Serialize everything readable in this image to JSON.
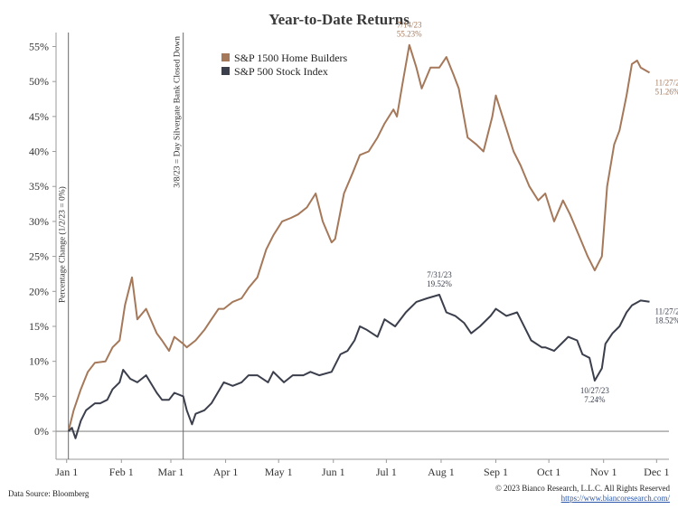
{
  "chart_data": {
    "type": "line",
    "title": "Year-to-Date Returns",
    "xlabel": "",
    "ylabel": "Percentage Change (1/2/23 = 0%)",
    "x_axis": {
      "type": "date",
      "min": "2022-12-26",
      "max": "2023-12-08",
      "ticks": [
        {
          "date": "2023-01-01",
          "label": "Jan 1"
        },
        {
          "date": "2023-02-01",
          "label": "Feb 1"
        },
        {
          "date": "2023-03-01",
          "label": "Mar 1"
        },
        {
          "date": "2023-04-01",
          "label": "Apr 1"
        },
        {
          "date": "2023-05-01",
          "label": "May 1"
        },
        {
          "date": "2023-06-01",
          "label": "Jun 1"
        },
        {
          "date": "2023-07-01",
          "label": "Jul 1"
        },
        {
          "date": "2023-08-01",
          "label": "Aug 1"
        },
        {
          "date": "2023-09-01",
          "label": "Sep 1"
        },
        {
          "date": "2023-10-01",
          "label": "Oct 1"
        },
        {
          "date": "2023-11-01",
          "label": "Nov 1"
        },
        {
          "date": "2023-12-01",
          "label": "Dec 1"
        }
      ]
    },
    "y_axis": {
      "min": -4,
      "max": 57,
      "ticks": [
        0,
        5,
        10,
        15,
        20,
        25,
        30,
        35,
        40,
        45,
        50,
        55
      ],
      "tick_labels": [
        "0%",
        "5%",
        "10%",
        "15%",
        "20%",
        "25%",
        "30%",
        "35%",
        "40%",
        "45%",
        "50%",
        "55%"
      ]
    },
    "grid": false,
    "legend_position": "top-left",
    "series": [
      {
        "name": "S&P 1500 Home Builders",
        "color": "#a5785a",
        "points": [
          [
            "2023-01-02",
            0
          ],
          [
            "2023-01-05",
            3
          ],
          [
            "2023-01-09",
            6
          ],
          [
            "2023-01-13",
            8.5
          ],
          [
            "2023-01-17",
            9.8
          ],
          [
            "2023-01-23",
            10
          ],
          [
            "2023-01-27",
            12
          ],
          [
            "2023-01-31",
            13
          ],
          [
            "2023-02-03",
            18
          ],
          [
            "2023-02-07",
            22
          ],
          [
            "2023-02-10",
            16
          ],
          [
            "2023-02-15",
            17.5
          ],
          [
            "2023-02-21",
            14
          ],
          [
            "2023-02-24",
            13
          ],
          [
            "2023-02-28",
            11.5
          ],
          [
            "2023-03-03",
            13.5
          ],
          [
            "2023-03-08",
            12.5
          ],
          [
            "2023-03-10",
            12
          ],
          [
            "2023-03-15",
            13
          ],
          [
            "2023-03-20",
            14.5
          ],
          [
            "2023-03-24",
            16
          ],
          [
            "2023-03-28",
            17.5
          ],
          [
            "2023-03-31",
            17.5
          ],
          [
            "2023-04-05",
            18.5
          ],
          [
            "2023-04-10",
            19
          ],
          [
            "2023-04-14",
            20.5
          ],
          [
            "2023-04-19",
            22
          ],
          [
            "2023-04-24",
            26
          ],
          [
            "2023-04-28",
            28
          ],
          [
            "2023-05-03",
            30
          ],
          [
            "2023-05-08",
            30.5
          ],
          [
            "2023-05-12",
            31
          ],
          [
            "2023-05-17",
            32
          ],
          [
            "2023-05-22",
            34
          ],
          [
            "2023-05-26",
            30
          ],
          [
            "2023-05-31",
            27
          ],
          [
            "2023-06-02",
            27.5
          ],
          [
            "2023-06-07",
            34
          ],
          [
            "2023-06-12",
            37
          ],
          [
            "2023-06-16",
            39.5
          ],
          [
            "2023-06-21",
            40
          ],
          [
            "2023-06-26",
            42
          ],
          [
            "2023-06-30",
            44
          ],
          [
            "2023-07-05",
            46
          ],
          [
            "2023-07-07",
            45
          ],
          [
            "2023-07-10",
            49.5
          ],
          [
            "2023-07-14",
            55.23
          ],
          [
            "2023-07-18",
            52
          ],
          [
            "2023-07-21",
            49
          ],
          [
            "2023-07-26",
            52
          ],
          [
            "2023-07-31",
            52
          ],
          [
            "2023-08-04",
            53.5
          ],
          [
            "2023-08-08",
            51
          ],
          [
            "2023-08-11",
            49
          ],
          [
            "2023-08-16",
            42
          ],
          [
            "2023-08-21",
            41
          ],
          [
            "2023-08-25",
            40
          ],
          [
            "2023-08-30",
            45
          ],
          [
            "2023-09-01",
            48
          ],
          [
            "2023-09-06",
            44
          ],
          [
            "2023-09-11",
            40
          ],
          [
            "2023-09-15",
            38
          ],
          [
            "2023-09-20",
            35
          ],
          [
            "2023-09-25",
            33
          ],
          [
            "2023-09-29",
            34
          ],
          [
            "2023-10-04",
            30
          ],
          [
            "2023-10-09",
            33
          ],
          [
            "2023-10-13",
            31
          ],
          [
            "2023-10-18",
            28
          ],
          [
            "2023-10-23",
            25
          ],
          [
            "2023-10-27",
            23
          ],
          [
            "2023-10-31",
            25
          ],
          [
            "2023-11-03",
            35
          ],
          [
            "2023-11-07",
            41
          ],
          [
            "2023-11-10",
            43
          ],
          [
            "2023-11-14",
            48
          ],
          [
            "2023-11-17",
            52.5
          ],
          [
            "2023-11-20",
            53
          ],
          [
            "2023-11-22",
            52
          ],
          [
            "2023-11-27",
            51.26
          ]
        ]
      },
      {
        "name": "S&P 500 Stock Index",
        "color": "#3b3f4c",
        "points": [
          [
            "2023-01-02",
            0
          ],
          [
            "2023-01-04",
            0.5
          ],
          [
            "2023-01-06",
            -1
          ],
          [
            "2023-01-09",
            1.5
          ],
          [
            "2023-01-12",
            3
          ],
          [
            "2023-01-17",
            4
          ],
          [
            "2023-01-20",
            4
          ],
          [
            "2023-01-24",
            4.5
          ],
          [
            "2023-01-27",
            6
          ],
          [
            "2023-01-31",
            7
          ],
          [
            "2023-02-02",
            8.8
          ],
          [
            "2023-02-06",
            7.5
          ],
          [
            "2023-02-10",
            7
          ],
          [
            "2023-02-15",
            8
          ],
          [
            "2023-02-21",
            5.5
          ],
          [
            "2023-02-24",
            4.5
          ],
          [
            "2023-02-28",
            4.5
          ],
          [
            "2023-03-03",
            5.5
          ],
          [
            "2023-03-08",
            5
          ],
          [
            "2023-03-10",
            3
          ],
          [
            "2023-03-13",
            1
          ],
          [
            "2023-03-15",
            2.5
          ],
          [
            "2023-03-20",
            3
          ],
          [
            "2023-03-24",
            4
          ],
          [
            "2023-03-31",
            7
          ],
          [
            "2023-04-05",
            6.5
          ],
          [
            "2023-04-10",
            7
          ],
          [
            "2023-04-14",
            8
          ],
          [
            "2023-04-19",
            8
          ],
          [
            "2023-04-25",
            7
          ],
          [
            "2023-04-28",
            8.5
          ],
          [
            "2023-05-04",
            7
          ],
          [
            "2023-05-09",
            8
          ],
          [
            "2023-05-15",
            8
          ],
          [
            "2023-05-19",
            8.5
          ],
          [
            "2023-05-24",
            8
          ],
          [
            "2023-05-31",
            8.5
          ],
          [
            "2023-06-05",
            11
          ],
          [
            "2023-06-09",
            11.5
          ],
          [
            "2023-06-13",
            13
          ],
          [
            "2023-06-16",
            15
          ],
          [
            "2023-06-20",
            14.5
          ],
          [
            "2023-06-26",
            13.5
          ],
          [
            "2023-06-30",
            16
          ],
          [
            "2023-07-06",
            15
          ],
          [
            "2023-07-12",
            17
          ],
          [
            "2023-07-18",
            18.5
          ],
          [
            "2023-07-24",
            19
          ],
          [
            "2023-07-31",
            19.52
          ],
          [
            "2023-08-04",
            17
          ],
          [
            "2023-08-09",
            16.5
          ],
          [
            "2023-08-14",
            15.5
          ],
          [
            "2023-08-18",
            14
          ],
          [
            "2023-08-23",
            15
          ],
          [
            "2023-08-29",
            16.5
          ],
          [
            "2023-09-01",
            17.5
          ],
          [
            "2023-09-07",
            16.5
          ],
          [
            "2023-09-13",
            17
          ],
          [
            "2023-09-15",
            16
          ],
          [
            "2023-09-21",
            13
          ],
          [
            "2023-09-27",
            12
          ],
          [
            "2023-09-29",
            12
          ],
          [
            "2023-10-04",
            11.5
          ],
          [
            "2023-10-10",
            13
          ],
          [
            "2023-10-12",
            13.5
          ],
          [
            "2023-10-17",
            13
          ],
          [
            "2023-10-20",
            11
          ],
          [
            "2023-10-24",
            10.5
          ],
          [
            "2023-10-27",
            7.24
          ],
          [
            "2023-10-31",
            9
          ],
          [
            "2023-11-02",
            12.5
          ],
          [
            "2023-11-06",
            14
          ],
          [
            "2023-11-10",
            15
          ],
          [
            "2023-11-14",
            17
          ],
          [
            "2023-11-17",
            18
          ],
          [
            "2023-11-22",
            18.7
          ],
          [
            "2023-11-27",
            18.52
          ]
        ]
      }
    ],
    "vertical_markers": [
      {
        "date": "2023-01-02",
        "label": "Percentage Change (1/2/23 = 0%)"
      },
      {
        "date": "2023-03-08",
        "label": "3/8/23 = Day Silvergate Bank Closed Down"
      }
    ],
    "annotations": [
      {
        "series": 0,
        "date": "2023-07-14",
        "value": 55.23,
        "line1": "7/14/23",
        "line2": "55.23%",
        "anchor": "above"
      },
      {
        "series": 0,
        "date": "2023-11-27",
        "value": 51.26,
        "line1": "11/27/23",
        "line2": "51.26%",
        "anchor": "right-below"
      },
      {
        "series": 1,
        "date": "2023-07-31",
        "value": 19.52,
        "line1": "7/31/23",
        "line2": "19.52%",
        "anchor": "above"
      },
      {
        "series": 1,
        "date": "2023-10-27",
        "value": 7.24,
        "line1": "10/27/23",
        "line2": "7.24%",
        "anchor": "below"
      },
      {
        "series": 1,
        "date": "2023-11-27",
        "value": 18.52,
        "line1": "11/27/23",
        "line2": "18.52%",
        "anchor": "right-below"
      }
    ]
  },
  "footer": {
    "source": "Data Source: Bloomberg",
    "copyright": "© 2023 Bianco Research, L.L.C. All Rights Reserved",
    "url": "https://www.biancoresearch.com/"
  }
}
